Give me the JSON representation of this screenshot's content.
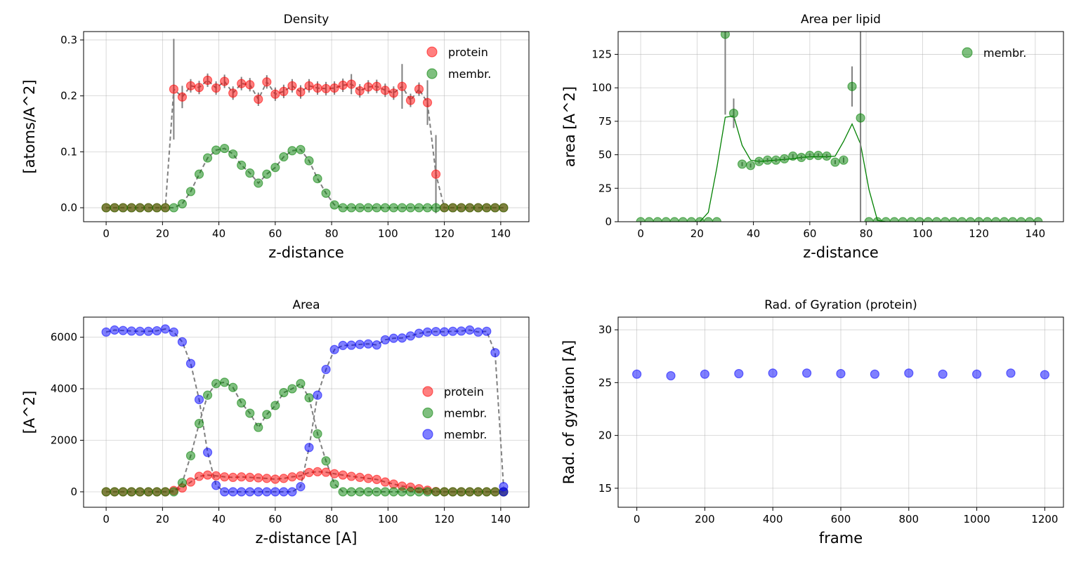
{
  "chart_data": [
    {
      "type": "scatter",
      "title": "Density",
      "xlabel": "z-distance",
      "ylabel": "[atoms/A^2]",
      "xlim": [
        -8,
        150
      ],
      "ylim": [
        -0.025,
        0.315
      ],
      "xticks": [
        0,
        20,
        40,
        60,
        80,
        100,
        120,
        140
      ],
      "yticks": [
        0.0,
        0.1,
        0.2,
        0.3
      ],
      "ytick_labels": [
        "0.0",
        "0.1",
        "0.2",
        "0.3"
      ],
      "grid": true,
      "legend": "top-right",
      "x": [
        0,
        3,
        6,
        9,
        12,
        15,
        18,
        21,
        24,
        27,
        30,
        33,
        36,
        39,
        42,
        45,
        48,
        51,
        54,
        57,
        60,
        63,
        66,
        69,
        72,
        75,
        78,
        81,
        84,
        87,
        90,
        93,
        96,
        99,
        102,
        105,
        108,
        111,
        114,
        117,
        120,
        123,
        126,
        129,
        132,
        135,
        138,
        141
      ],
      "series": [
        {
          "name": "protein",
          "color": "#ff0000",
          "values": [
            0,
            0,
            0,
            0,
            0,
            0,
            0,
            0,
            0.212,
            0.198,
            0.218,
            0.215,
            0.228,
            0.214,
            0.226,
            0.205,
            0.222,
            0.22,
            0.194,
            0.225,
            0.203,
            0.208,
            0.218,
            0.207,
            0.218,
            0.214,
            0.213,
            0.214,
            0.219,
            0.221,
            0.209,
            0.216,
            0.217,
            0.21,
            0.205,
            0.217,
            0.192,
            0.212,
            0.188,
            0.06,
            0,
            0,
            0,
            0,
            0,
            0,
            0,
            0
          ],
          "errors": [
            0,
            0,
            0,
            0,
            0,
            0,
            0,
            0,
            0.09,
            0.02,
            0.012,
            0.012,
            0.012,
            0.012,
            0.012,
            0.012,
            0.012,
            0.012,
            0.012,
            0.012,
            0.012,
            0.012,
            0.012,
            0.012,
            0.012,
            0.012,
            0.012,
            0.012,
            0.012,
            0.018,
            0.012,
            0.012,
            0.012,
            0.012,
            0.012,
            0.04,
            0.012,
            0.012,
            0.04,
            0.07,
            0,
            0,
            0,
            0,
            0,
            0,
            0,
            0
          ]
        },
        {
          "name": "membr.",
          "color": "#008000",
          "values": [
            0,
            0,
            0,
            0,
            0,
            0,
            0,
            0,
            0,
            0.007,
            0.029,
            0.06,
            0.089,
            0.103,
            0.106,
            0.096,
            0.076,
            0.062,
            0.044,
            0.06,
            0.072,
            0.091,
            0.102,
            0.104,
            0.084,
            0.052,
            0.026,
            0.005,
            0,
            0,
            0,
            0,
            0,
            0,
            0,
            0,
            0,
            0,
            0,
            0,
            0,
            0,
            0,
            0,
            0,
            0,
            0,
            0
          ]
        }
      ]
    },
    {
      "type": "scatter",
      "title": "Area per lipid",
      "xlabel": "z-distance",
      "ylabel": "area [A^2]",
      "xlim": [
        -8,
        150
      ],
      "ylim": [
        0,
        142
      ],
      "xticks": [
        0,
        20,
        40,
        60,
        80,
        100,
        120,
        140
      ],
      "yticks": [
        0,
        25,
        50,
        75,
        100,
        125
      ],
      "ytick_labels": [
        "0",
        "25",
        "50",
        "75",
        "100",
        "125"
      ],
      "grid": true,
      "legend": "top-right",
      "x": [
        0,
        3,
        6,
        9,
        12,
        15,
        18,
        21,
        24,
        27,
        30,
        33,
        36,
        39,
        42,
        45,
        48,
        51,
        54,
        57,
        60,
        63,
        66,
        69,
        72,
        75,
        78,
        81,
        84,
        87,
        90,
        93,
        96,
        99,
        102,
        105,
        108,
        111,
        114,
        117,
        120,
        123,
        126,
        129,
        132,
        135,
        138,
        141
      ],
      "series": [
        {
          "name": "membr.",
          "color": "#008000",
          "values": [
            0,
            0,
            0,
            0,
            0,
            0,
            0,
            0,
            0,
            0,
            140,
            81,
            43,
            42,
            45,
            46,
            46,
            47,
            49,
            48,
            49.5,
            49.5,
            49,
            44.5,
            46,
            101,
            77.5,
            0,
            0,
            0,
            0,
            0,
            0,
            0,
            0,
            0,
            0,
            0,
            0,
            0,
            0,
            0,
            0,
            0,
            0,
            0,
            0,
            0
          ],
          "errors": [
            0,
            0,
            0,
            0,
            0,
            0,
            0,
            0,
            0,
            0,
            60,
            11,
            1.5,
            1.5,
            1.5,
            1.5,
            1.5,
            1.5,
            1.5,
            1.5,
            1.5,
            1.5,
            1.5,
            1.5,
            2,
            15,
            140,
            0,
            0,
            0,
            0,
            0,
            0,
            0,
            0,
            0,
            0,
            0,
            0,
            0,
            0,
            0,
            0,
            0,
            0,
            0,
            0,
            0
          ]
        }
      ],
      "smooth_line": {
        "color": "#008000",
        "values": [
          0,
          0,
          0,
          0,
          0,
          0,
          0,
          0,
          7,
          40,
          78,
          79,
          57,
          46,
          45,
          45.5,
          46,
          46.5,
          47,
          48,
          48.5,
          48.5,
          48.5,
          49,
          60,
          73,
          58,
          24,
          1,
          0,
          0,
          0,
          0,
          0,
          0,
          0,
          0,
          0,
          0,
          0,
          0,
          0,
          0,
          0,
          0,
          0,
          0,
          0
        ]
      }
    },
    {
      "type": "scatter",
      "title": "Area",
      "xlabel": "z-distance [A]",
      "ylabel": "[A^2]",
      "xlim": [
        -8,
        150
      ],
      "ylim": [
        -600,
        6780
      ],
      "xticks": [
        0,
        20,
        40,
        60,
        80,
        100,
        120,
        140
      ],
      "yticks": [
        0,
        2000,
        4000,
        6000
      ],
      "ytick_labels": [
        "0",
        "2000",
        "4000",
        "6000"
      ],
      "grid": true,
      "legend": "center-right",
      "x": [
        0,
        3,
        6,
        9,
        12,
        15,
        18,
        21,
        24,
        27,
        30,
        33,
        36,
        39,
        42,
        45,
        48,
        51,
        54,
        57,
        60,
        63,
        66,
        69,
        72,
        75,
        78,
        81,
        84,
        87,
        90,
        93,
        96,
        99,
        102,
        105,
        108,
        111,
        114,
        117,
        120,
        123,
        126,
        129,
        132,
        135,
        138,
        141
      ],
      "series": [
        {
          "name": "protein",
          "color": "#ff0000",
          "values": [
            0,
            0,
            0,
            0,
            0,
            0,
            0,
            0,
            50,
            150,
            380,
            600,
            650,
            620,
            580,
            560,
            580,
            560,
            540,
            520,
            490,
            520,
            580,
            620,
            750,
            780,
            760,
            700,
            650,
            600,
            560,
            520,
            480,
            380,
            300,
            220,
            180,
            120,
            60,
            10,
            0,
            0,
            0,
            0,
            0,
            0,
            0,
            0
          ]
        },
        {
          "name": "membr.",
          "color": "#008000",
          "values": [
            0,
            0,
            0,
            0,
            0,
            0,
            0,
            0,
            0,
            350,
            1400,
            2650,
            3750,
            4200,
            4250,
            4050,
            3450,
            3050,
            2500,
            3000,
            3350,
            3850,
            4000,
            4200,
            3650,
            2250,
            1200,
            300,
            0,
            0,
            0,
            0,
            0,
            0,
            0,
            0,
            0,
            0,
            0,
            0,
            0,
            0,
            0,
            0,
            0,
            0,
            0,
            0
          ]
        },
        {
          "name": "membr.",
          "color": "#0000ff",
          "values": [
            6200,
            6280,
            6260,
            6240,
            6230,
            6230,
            6250,
            6320,
            6200,
            5820,
            4980,
            3580,
            1530,
            250,
            0,
            0,
            0,
            0,
            0,
            0,
            0,
            0,
            0,
            200,
            1720,
            3750,
            4750,
            5520,
            5680,
            5690,
            5720,
            5740,
            5700,
            5900,
            5960,
            5970,
            6050,
            6150,
            6200,
            6220,
            6210,
            6230,
            6240,
            6280,
            6200,
            6230,
            5400,
            200
          ],
          "extra_points": [
            [
              141,
              0
            ]
          ]
        }
      ]
    },
    {
      "type": "scatter",
      "title": "Rad. of Gyration (protein)",
      "xlabel": "frame",
      "ylabel": "Rad. of gyration [A]",
      "xlim": [
        -55,
        1255
      ],
      "ylim": [
        13.2,
        31.2
      ],
      "xticks": [
        0,
        200,
        400,
        600,
        800,
        1000,
        1200
      ],
      "yticks": [
        15,
        20,
        25,
        30
      ],
      "ytick_labels": [
        "15",
        "20",
        "25",
        "30"
      ],
      "grid": true,
      "legend": "",
      "x": [
        0,
        100,
        200,
        300,
        400,
        500,
        600,
        700,
        800,
        900,
        1000,
        1100,
        1200
      ],
      "series": [
        {
          "name": "",
          "color": "#0000ff",
          "values": [
            25.8,
            25.65,
            25.8,
            25.85,
            25.9,
            25.9,
            25.85,
            25.8,
            25.9,
            25.8,
            25.8,
            25.9,
            25.75
          ]
        }
      ]
    }
  ]
}
